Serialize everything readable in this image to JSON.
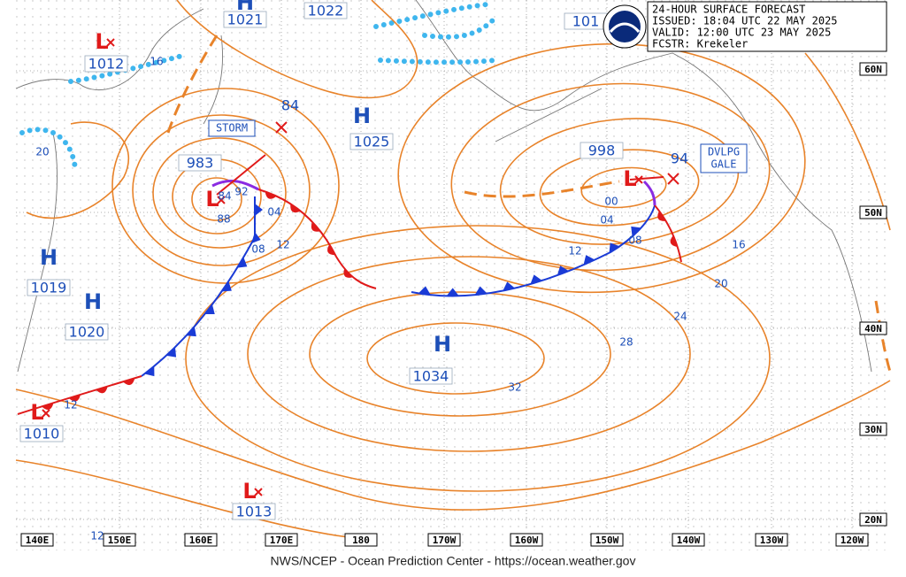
{
  "header": {
    "lines": [
      "24-HOUR SURFACE FORECAST",
      "ISSUED: 18:04 UTC 22 MAY 2025",
      "VALID:  12:00 UTC 23 MAY 2025",
      "FCSTR:  Krekeler"
    ]
  },
  "footer": "NWS/NCEP - Ocean Prediction Center - https://ocean.weather.gov",
  "longitudes": [
    "140E",
    "150E",
    "160E",
    "170E",
    "180",
    "170W",
    "160W",
    "150W",
    "140W",
    "130W",
    "120W"
  ],
  "latitudes": [
    "60N",
    "50N",
    "40N",
    "30N",
    "20N"
  ],
  "systems": [
    {
      "symbol": "H",
      "pressure": 1021
    },
    {
      "pressure": 1022
    },
    {
      "symbol": "L",
      "pressure": 1012
    },
    {
      "symbol": "H",
      "pressure": 1025
    },
    {
      "symbol": "L",
      "pressure": 983
    },
    {
      "symbol": "H",
      "pressure": 1019
    },
    {
      "symbol": "H",
      "pressure": 1020
    },
    {
      "symbol": "H",
      "pressure": 1034
    },
    {
      "symbol": "L",
      "pressure": 1010
    },
    {
      "symbol": "L",
      "pressure": 1013
    },
    {
      "symbol": "L",
      "pressure": 998
    },
    {
      "pressure": 101
    }
  ],
  "forecast_positions": [
    84,
    94
  ],
  "warnings": [
    {
      "lines": [
        "STORM"
      ]
    },
    {
      "lines": [
        "DVLPG",
        "GALE"
      ]
    }
  ],
  "isobar_labels": [
    "16",
    "20",
    "04",
    "12",
    "08",
    "00",
    "04",
    "08",
    "12",
    "16",
    "20",
    "24",
    "28",
    "32",
    "12",
    "12",
    "84",
    "92",
    "88"
  ]
}
